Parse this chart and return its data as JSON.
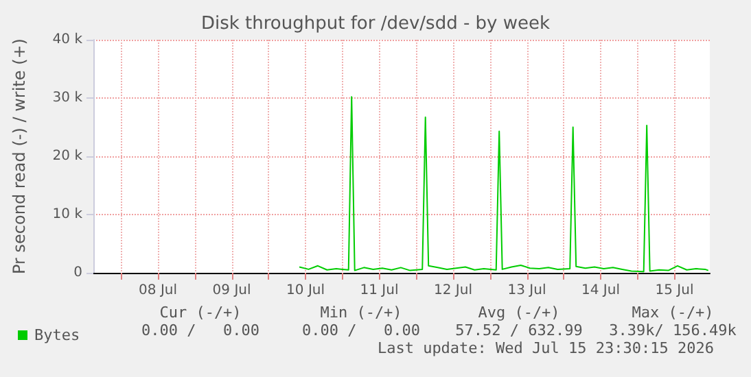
{
  "chart_data": {
    "type": "line",
    "title": "Disk throughput for /dev/sdd - by week",
    "ylabel": "Pr second read (-) / write (+)",
    "x": [
      "2026-07-10T10:00",
      "2026-07-10T13:00",
      "2026-07-10T16:00",
      "2026-07-10T19:00",
      "2026-07-10T22:00",
      "2026-07-11T00:00",
      "2026-07-11T02:00",
      "2026-07-11T03:00",
      "2026-07-11T04:00",
      "2026-07-11T07:00",
      "2026-07-11T10:00",
      "2026-07-11T13:00",
      "2026-07-11T16:00",
      "2026-07-11T19:00",
      "2026-07-11T22:00",
      "2026-07-12T02:00",
      "2026-07-12T03:00",
      "2026-07-12T04:00",
      "2026-07-12T07:00",
      "2026-07-12T10:00",
      "2026-07-12T13:00",
      "2026-07-12T16:00",
      "2026-07-12T19:00",
      "2026-07-12T22:00",
      "2026-07-13T02:00",
      "2026-07-13T03:00",
      "2026-07-13T04:00",
      "2026-07-13T07:00",
      "2026-07-13T10:00",
      "2026-07-13T13:00",
      "2026-07-13T16:00",
      "2026-07-13T19:00",
      "2026-07-13T22:00",
      "2026-07-14T02:00",
      "2026-07-14T03:00",
      "2026-07-14T04:00",
      "2026-07-14T07:00",
      "2026-07-14T10:00",
      "2026-07-14T13:00",
      "2026-07-14T16:00",
      "2026-07-14T19:00",
      "2026-07-14T22:00",
      "2026-07-15T02:00",
      "2026-07-15T03:00",
      "2026-07-15T04:00",
      "2026-07-15T07:00",
      "2026-07-15T10:00",
      "2026-07-15T13:00",
      "2026-07-15T16:00",
      "2026-07-15T19:00",
      "2026-07-15T22:00",
      "2026-07-15T23:00"
    ],
    "series": [
      {
        "name": "Bytes",
        "color": "#00cc00",
        "values": [
          1000,
          600,
          1200,
          500,
          700,
          600,
          500,
          30200,
          400,
          900,
          600,
          800,
          500,
          900,
          400,
          600,
          26700,
          1200,
          900,
          600,
          800,
          1000,
          500,
          700,
          500,
          24300,
          600,
          1000,
          1300,
          800,
          700,
          900,
          600,
          700,
          25000,
          1100,
          800,
          1000,
          700,
          900,
          600,
          300,
          200,
          25300,
          300,
          500,
          400,
          1200,
          500,
          700,
          600,
          400
        ]
      }
    ],
    "xlim": [
      "2026-07-07T15:00",
      "2026-07-15T23:30"
    ],
    "xticks": [
      {
        "value": "2026-07-08T00:00",
        "label": null
      },
      {
        "value": "2026-07-08T12:00",
        "label": "08 Jul"
      },
      {
        "value": "2026-07-09T00:00",
        "label": null
      },
      {
        "value": "2026-07-09T12:00",
        "label": "09 Jul"
      },
      {
        "value": "2026-07-10T00:00",
        "label": null
      },
      {
        "value": "2026-07-10T12:00",
        "label": "10 Jul"
      },
      {
        "value": "2026-07-11T00:00",
        "label": null
      },
      {
        "value": "2026-07-11T12:00",
        "label": "11 Jul"
      },
      {
        "value": "2026-07-12T00:00",
        "label": null
      },
      {
        "value": "2026-07-12T12:00",
        "label": "12 Jul"
      },
      {
        "value": "2026-07-13T00:00",
        "label": null
      },
      {
        "value": "2026-07-13T12:00",
        "label": "13 Jul"
      },
      {
        "value": "2026-07-14T00:00",
        "label": null
      },
      {
        "value": "2026-07-14T12:00",
        "label": "14 Jul"
      },
      {
        "value": "2026-07-15T00:00",
        "label": null
      },
      {
        "value": "2026-07-15T12:00",
        "label": "15 Jul"
      }
    ],
    "ylim": [
      0,
      40000
    ],
    "yticks": [
      {
        "value": 0,
        "label": "0"
      },
      {
        "value": 10000,
        "label": "10 k"
      },
      {
        "value": 20000,
        "label": "20 k"
      },
      {
        "value": 30000,
        "label": "30 k"
      },
      {
        "value": 40000,
        "label": "40 k"
      }
    ],
    "grid": true,
    "legend": "bottom left",
    "marker": "none",
    "line_style": "solid",
    "annotations": [
      "Cur (-/+)",
      "Min (-/+)",
      "Avg (-/+)",
      "Max (-/+)",
      "0.00 /   0.00",
      "0.00 /   0.00",
      "57.52 / 632.99",
      "3.39k/ 156.49k",
      "Last update: Wed Jul 15 23:30:15 2026"
    ]
  }
}
